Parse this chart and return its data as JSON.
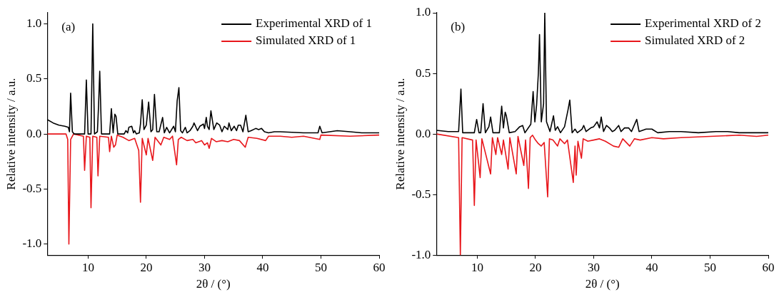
{
  "chart_data": [
    {
      "type": "line",
      "xlabel": "2θ / (°)",
      "ylabel": "Relative intensity / a.u.",
      "annotations": [
        "(a)"
      ],
      "legend": "top right",
      "marker": "none",
      "line_style": "solid",
      "xlim": [
        3,
        60
      ],
      "xticks": [
        10,
        20,
        30,
        40,
        50,
        60
      ],
      "ylim": [
        -1.1,
        1.1
      ],
      "yticks": [
        {
          "value": -1,
          "label": "-1.0"
        },
        {
          "value": -0.5,
          "label": "-0.5"
        },
        {
          "value": 0,
          "label": "0.0"
        },
        {
          "value": 0.5,
          "label": "0.5"
        },
        {
          "value": 1,
          "label": "1.0"
        }
      ],
      "series": [
        {
          "name": "Experimental XRD of 1",
          "color": "#000000",
          "x": [
            3,
            4,
            5,
            6,
            6.6,
            6.8,
            7.0,
            7.3,
            7.6,
            9.4,
            9.7,
            10.0,
            10.5,
            10.8,
            11.1,
            11.6,
            11.8,
            12.0,
            12.3,
            13.7,
            14.0,
            14.3,
            14.6,
            14.8,
            15.1,
            16.2,
            16.5,
            16.8,
            17.0,
            17.5,
            17.8,
            18.0,
            18.3,
            18.8,
            19.0,
            19.3,
            19.6,
            20.0,
            20.4,
            20.8,
            21.1,
            21.4,
            21.8,
            22.2,
            22.8,
            23.1,
            23.5,
            24.0,
            24.7,
            25.0,
            25.3,
            25.6,
            25.9,
            26.2,
            26.7,
            27.0,
            27.5,
            28.0,
            28.2,
            28.8,
            29.2,
            29.5,
            29.8,
            30.0,
            30.3,
            30.5,
            30.8,
            31.1,
            31.6,
            32.1,
            32.6,
            33.0,
            33.4,
            34.0,
            34.2,
            34.6,
            35.1,
            35.5,
            35.8,
            36.2,
            36.6,
            37.1,
            37.5,
            38.0,
            38.8,
            39.3,
            39.8,
            40.3,
            41,
            42,
            43,
            45,
            47,
            49.5,
            49.8,
            50.2,
            52.8,
            55,
            57,
            60
          ],
          "values": [
            0.13,
            0.1,
            0.08,
            0.07,
            0.06,
            0.02,
            0.37,
            0.02,
            0,
            0,
            0.49,
            0,
            0,
            1.0,
            0,
            0.02,
            0.26,
            0.57,
            0,
            0,
            0.23,
            0.01,
            0.18,
            0.16,
            0,
            0,
            0.03,
            0.01,
            0.06,
            0.07,
            0.01,
            0.03,
            0,
            0.01,
            0.09,
            0.31,
            0.04,
            0.08,
            0.29,
            0.02,
            0.04,
            0.36,
            0.02,
            0.02,
            0.15,
            0.01,
            0.06,
            0.01,
            0.07,
            0.02,
            0.3,
            0.42,
            0.03,
            0.01,
            0.06,
            0.01,
            0.03,
            0.07,
            0.1,
            0.03,
            0.07,
            0.08,
            0.09,
            0.05,
            0.15,
            0.07,
            0.04,
            0.21,
            0.04,
            0.1,
            0.08,
            0.02,
            0.07,
            0.04,
            0.1,
            0.03,
            0.07,
            0.03,
            0.08,
            0.08,
            0.02,
            0.17,
            0.02,
            0.03,
            0.05,
            0.04,
            0.05,
            0.02,
            0.01,
            0.02,
            0.02,
            0.015,
            0.01,
            0.01,
            0.07,
            0.01,
            0.03,
            0.02,
            0.01,
            0.01
          ]
        },
        {
          "name": "Simulated XRD of 1",
          "color": "#e8161b",
          "x": [
            3,
            6.2,
            6.5,
            6.7,
            7.0,
            7.5,
            9.2,
            9.4,
            9.7,
            10.3,
            10.5,
            10.8,
            11.5,
            11.7,
            12.0,
            13.5,
            13.7,
            14.0,
            14.4,
            14.7,
            15.0,
            16.0,
            17.0,
            18.0,
            18.7,
            19.0,
            19.3,
            20.0,
            20.3,
            21.1,
            21.5,
            22.5,
            23,
            24,
            24.5,
            25.2,
            25.5,
            26,
            27,
            28,
            28.5,
            29.5,
            30,
            30.5,
            30.8,
            31.2,
            32,
            33,
            34,
            35,
            36,
            37,
            37.5,
            39,
            40.5,
            41,
            43,
            45,
            47,
            49.8,
            50,
            55,
            60
          ],
          "values": [
            0,
            0,
            -0.05,
            -1.0,
            -0.05,
            0,
            -0.02,
            -0.33,
            -0.02,
            -0.03,
            -0.67,
            -0.02,
            -0.03,
            -0.38,
            -0.02,
            -0.03,
            -0.16,
            -0.02,
            -0.12,
            -0.1,
            -0.01,
            -0.03,
            -0.06,
            -0.04,
            -0.15,
            -0.62,
            -0.04,
            -0.19,
            -0.04,
            -0.24,
            -0.03,
            -0.1,
            -0.03,
            -0.05,
            -0.02,
            -0.28,
            -0.05,
            -0.03,
            -0.06,
            -0.05,
            -0.08,
            -0.06,
            -0.1,
            -0.08,
            -0.13,
            -0.04,
            -0.07,
            -0.06,
            -0.07,
            -0.05,
            -0.06,
            -0.12,
            -0.03,
            -0.04,
            -0.06,
            -0.02,
            -0.02,
            -0.03,
            -0.02,
            -0.05,
            -0.01,
            -0.02,
            -0.01
          ]
        }
      ]
    },
    {
      "type": "line",
      "xlabel": "2θ / (°)",
      "ylabel": "Relative intensity / a.u.",
      "annotations": [
        "(b)"
      ],
      "legend": "top right",
      "marker": "none",
      "line_style": "solid",
      "xlim": [
        3,
        60
      ],
      "xticks": [
        10,
        20,
        30,
        40,
        50,
        60
      ],
      "ylim": [
        -1,
        1
      ],
      "yticks": [
        {
          "value": -1,
          "label": "-1.0"
        },
        {
          "value": -0.5,
          "label": "-0.5"
        },
        {
          "value": 0,
          "label": "0.0"
        },
        {
          "value": 0.5,
          "label": "0.5"
        },
        {
          "value": 1,
          "label": "1.0"
        }
      ],
      "series": [
        {
          "name": "Experimental XRD of 2",
          "color": "#000000",
          "x": [
            3,
            5,
            6.8,
            7.2,
            7.5,
            9.5,
            9.9,
            10.3,
            10.6,
            11.0,
            11.4,
            12.0,
            12.3,
            12.7,
            13.8,
            14.2,
            14.5,
            14.8,
            15.0,
            15.5,
            16.5,
            17.3,
            17.8,
            18.2,
            19.2,
            19.6,
            19.9,
            20.2,
            20.5,
            20.7,
            21.0,
            21.4,
            21.6,
            21.9,
            22.5,
            23.1,
            23.4,
            23.8,
            24.3,
            25.0,
            25.6,
            25.9,
            26.3,
            26.8,
            27.2,
            28,
            28.3,
            28.7,
            29.5,
            30.0,
            30.6,
            31.0,
            31.3,
            31.7,
            32.2,
            32.7,
            33.2,
            33.6,
            34.3,
            34.7,
            35.3,
            36.0,
            36.5,
            37.4,
            37.8,
            39,
            40,
            41,
            43,
            45,
            48,
            51,
            53,
            55,
            58,
            60
          ],
          "values": [
            0.03,
            0.02,
            0.02,
            0.37,
            0.01,
            0.01,
            0.12,
            0.01,
            0.01,
            0.25,
            0.01,
            0.06,
            0.14,
            0.01,
            0.01,
            0.23,
            0.05,
            0.18,
            0.15,
            0.01,
            0.02,
            0.06,
            0.07,
            0.01,
            0.08,
            0.35,
            0.1,
            0.24,
            0.5,
            0.82,
            0.1,
            0.25,
            1.0,
            0.1,
            0.02,
            0.15,
            0.03,
            0.06,
            0.01,
            0.06,
            0.2,
            0.28,
            0.01,
            0.04,
            0.01,
            0.04,
            0.07,
            0.02,
            0.05,
            0.06,
            0.1,
            0.05,
            0.14,
            0.02,
            0.07,
            0.05,
            0.02,
            0.03,
            0.07,
            0.02,
            0.05,
            0.05,
            0.02,
            0.12,
            0.02,
            0.04,
            0.04,
            0.01,
            0.02,
            0.02,
            0.01,
            0.02,
            0.02,
            0.01,
            0.01,
            0.01
          ]
        },
        {
          "name": "Simulated XRD of 2",
          "color": "#e8161b",
          "x": [
            3,
            6.8,
            7.1,
            7.4,
            9.2,
            9.5,
            9.8,
            10.5,
            10.8,
            12.3,
            12.6,
            13.2,
            13.5,
            14.2,
            14.5,
            15.3,
            15.6,
            16.7,
            17.0,
            18.0,
            18.3,
            18.8,
            19.1,
            19.5,
            20.0,
            20.5,
            21.0,
            21.5,
            22.1,
            22.4,
            23.0,
            23.8,
            24.2,
            25,
            25.5,
            26.5,
            26.8,
            27.0,
            27.3,
            27.9,
            28.2,
            29,
            30,
            31,
            32,
            33.4,
            34.3,
            35,
            36.2,
            37,
            38,
            40,
            42,
            45,
            50,
            55,
            58,
            60
          ],
          "values": [
            0,
            -0.03,
            -1.0,
            -0.03,
            -0.05,
            -0.59,
            -0.05,
            -0.36,
            -0.04,
            -0.33,
            -0.03,
            -0.17,
            -0.03,
            -0.17,
            -0.05,
            -0.29,
            -0.03,
            -0.33,
            -0.02,
            -0.26,
            -0.05,
            -0.45,
            -0.03,
            -0.01,
            -0.05,
            -0.08,
            -0.1,
            -0.07,
            -0.52,
            -0.04,
            -0.05,
            -0.1,
            -0.04,
            -0.08,
            -0.05,
            -0.4,
            -0.1,
            -0.34,
            -0.06,
            -0.2,
            -0.04,
            -0.06,
            -0.05,
            -0.04,
            -0.06,
            -0.1,
            -0.11,
            -0.04,
            -0.1,
            -0.04,
            -0.05,
            -0.03,
            -0.04,
            -0.03,
            -0.02,
            -0.01,
            -0.02,
            -0.01
          ]
        }
      ]
    }
  ]
}
